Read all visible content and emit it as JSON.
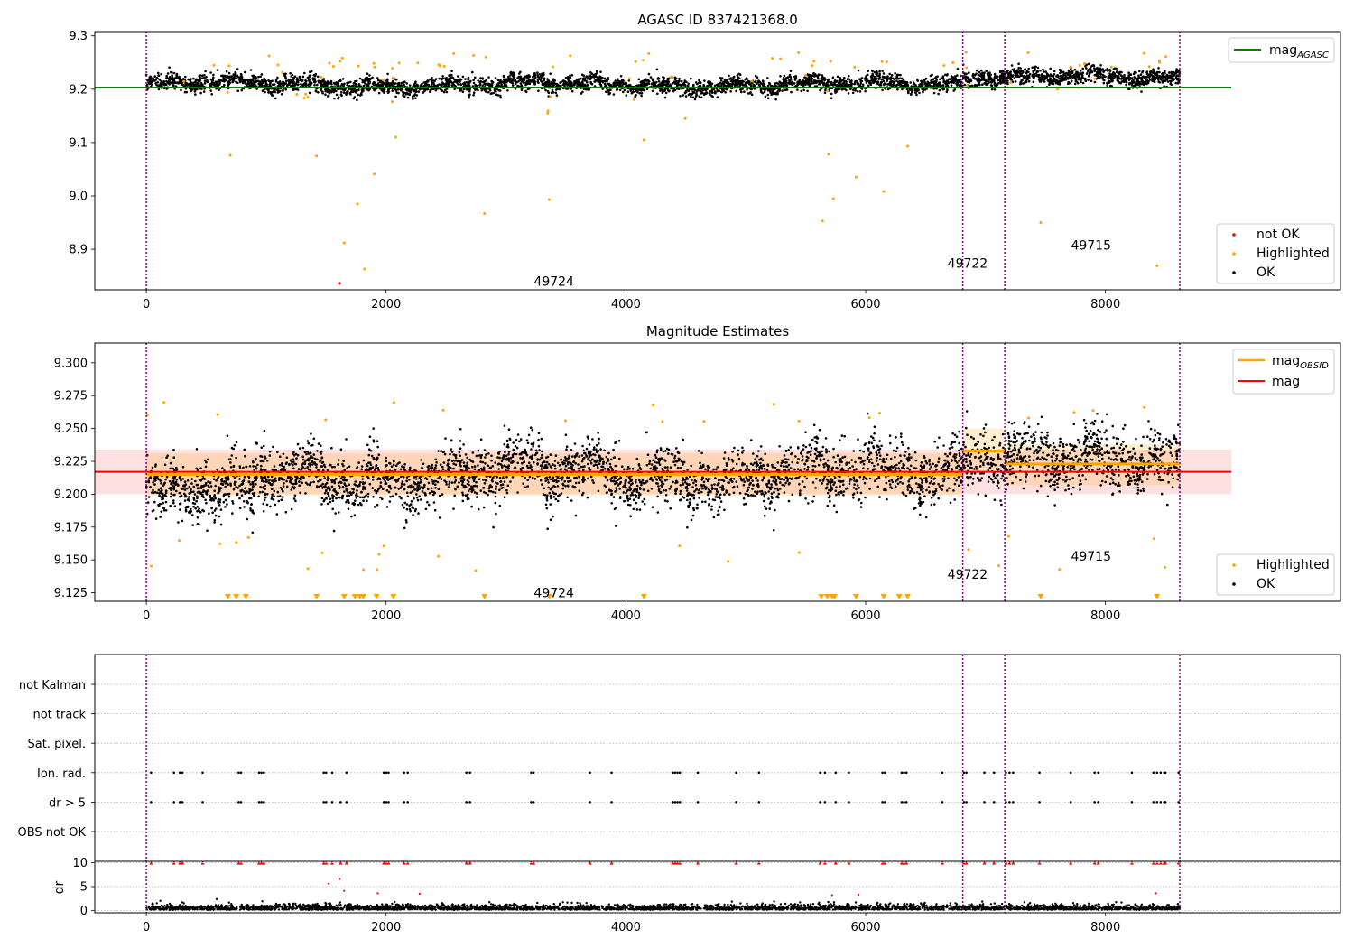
{
  "chart_data": [
    {
      "type": "scatter",
      "title": "AGASC ID 837421368.0",
      "xlabel": "",
      "ylabel": "",
      "xlim": [
        -430,
        9960
      ],
      "ylim": [
        8.824,
        9.308
      ],
      "x_ticks": [
        0,
        2000,
        4000,
        6000,
        8000
      ],
      "y_ticks": [
        8.9,
        9.0,
        9.1,
        9.2,
        9.3
      ],
      "y_tick_decimals": 1,
      "grid": false,
      "obsid_boundaries": [
        0,
        6810,
        7160,
        8620
      ],
      "obsid_labels": [
        {
          "text": "49724",
          "x": 3400,
          "y": 8.84
        },
        {
          "text": "49722",
          "x": 6850,
          "y": 8.874
        },
        {
          "text": "49715",
          "x": 7880,
          "y": 8.908
        }
      ],
      "reference_lines": [
        {
          "name": "mag_AGASC",
          "value": 9.203,
          "x_range": [
            -430,
            9050
          ],
          "color": "#008000"
        }
      ],
      "scatter_series": [
        {
          "name": "OK",
          "color": "#000000",
          "baseline": 9.2085,
          "slow_amp": 0.01,
          "noise": 0.012,
          "count": 4200,
          "seed": 11
        },
        {
          "name": "Highlighted",
          "color": "#ffa500",
          "count": 75,
          "seed": 5,
          "samples": [
            [
              700,
              9.076
            ],
            [
              1650,
              8.912
            ],
            [
              1760,
              8.985
            ],
            [
              1820,
              8.863
            ],
            [
              1900,
              9.041
            ],
            [
              2820,
              8.967
            ],
            [
              3360,
              8.993
            ],
            [
              5640,
              8.953
            ],
            [
              5730,
              8.995
            ],
            [
              5920,
              9.035
            ],
            [
              6150,
              9.008
            ],
            [
              7460,
              8.95
            ],
            [
              8430,
              8.869
            ],
            [
              2080,
              9.11
            ],
            [
              4150,
              9.105
            ],
            [
              5690,
              9.078
            ],
            [
              6350,
              9.093
            ],
            [
              1420,
              9.075
            ]
          ]
        },
        {
          "name": "not OK",
          "color": "#ff0000",
          "points": [
            [
              1610,
              8.836
            ]
          ]
        }
      ],
      "legend": {
        "position": "top-right",
        "entries": [
          {
            "label": "mag",
            "subscript": "AGASC"
          }
        ]
      },
      "legend2": {
        "position": "bottom-right",
        "entries": [
          "not OK",
          "Highlighted",
          "OK"
        ]
      }
    },
    {
      "type": "scatter",
      "title": "Magnitude Estimates",
      "xlabel": "",
      "ylabel": "",
      "xlim": [
        -430,
        9960
      ],
      "ylim": [
        9.1185,
        9.315
      ],
      "x_ticks": [
        0,
        2000,
        4000,
        6000,
        8000
      ],
      "y_ticks": [
        9.125,
        9.15,
        9.175,
        9.2,
        9.225,
        9.25,
        9.275,
        9.3
      ],
      "y_tick_decimals": 3,
      "grid": false,
      "obsid_boundaries": [
        0,
        6810,
        7160,
        8620
      ],
      "obsid_labels": [
        {
          "text": "49724",
          "x": 3400,
          "y": 9.125
        },
        {
          "text": "49722",
          "x": 6850,
          "y": 9.139
        },
        {
          "text": "49715",
          "x": 7880,
          "y": 9.153
        }
      ],
      "mag": {
        "value": 9.217,
        "band": [
          9.2,
          9.234
        ],
        "x_range": [
          -430,
          9050
        ],
        "color": "#ff0000"
      },
      "mag_obsid": [
        {
          "x_range": [
            0,
            6810
          ],
          "value": 9.215,
          "band": [
            9.199,
            9.231
          ]
        },
        {
          "x_range": [
            6810,
            7160
          ],
          "value": 9.233,
          "band": [
            9.218,
            9.25
          ]
        },
        {
          "x_range": [
            7160,
            8620
          ],
          "value": 9.223,
          "band": [
            9.207,
            9.238
          ]
        }
      ],
      "scatter_series": [
        {
          "name": "OK",
          "color": "#000000",
          "count": 4200,
          "seed": 23
        },
        {
          "name": "Highlighted",
          "color": "#ffa500",
          "count": 40,
          "seed": 9
        },
        {
          "name": "Highlighted (below range)",
          "color": "#ffa500",
          "marker": "triangle-down",
          "x": [
            680,
            750,
            830,
            1420,
            1650,
            1740,
            1780,
            1810,
            1920,
            2060,
            2820,
            3360,
            4150,
            5630,
            5680,
            5720,
            5740,
            5920,
            6150,
            6280,
            6350,
            7460,
            8430
          ]
        }
      ],
      "legend": {
        "position": "top-right",
        "entries": [
          {
            "label": "mag",
            "subscript": "OBSID"
          },
          {
            "label": "mag"
          }
        ]
      },
      "legend2": {
        "position": "bottom-right",
        "entries": [
          "Highlighted",
          "OK"
        ]
      }
    },
    {
      "type": "scatter",
      "title": "",
      "xlabel": "",
      "ylabel": "",
      "xlim": [
        -430,
        9960
      ],
      "x_ticks": [
        0,
        2000,
        4000,
        6000,
        8000
      ],
      "grid": true,
      "obsid_boundaries": [
        0,
        6810,
        7160,
        8620
      ],
      "flag_rows": [
        "not Kalman",
        "not track",
        "Sat. pixel.",
        "Ion. rad.",
        "dr > 5",
        "OBS not OK"
      ],
      "flag_events": {
        "Ion. rad.": [
          40,
          230,
          280,
          300,
          470,
          770,
          790,
          940,
          960,
          980,
          1480,
          1500,
          1550,
          1670,
          1980,
          2000,
          2020,
          2150,
          2180,
          2670,
          2700,
          3210,
          3230,
          3700,
          3880,
          4390,
          4410,
          4430,
          4450,
          4600,
          4920,
          5110,
          5620,
          5660,
          5750,
          5860,
          6140,
          6160,
          6300,
          6320,
          6340,
          6640,
          6820,
          6840,
          6990,
          7070,
          7170,
          7200,
          7230,
          7450,
          7710,
          7910,
          7940,
          8220,
          8400,
          8430,
          8460,
          8490,
          8500,
          8610
        ],
        "dr > 5": [
          40,
          230,
          280,
          300,
          470,
          770,
          790,
          940,
          960,
          980,
          1480,
          1500,
          1550,
          1620,
          1670,
          1980,
          2000,
          2020,
          2150,
          2180,
          2670,
          2700,
          3210,
          3230,
          3700,
          3880,
          4390,
          4410,
          4430,
          4450,
          4600,
          4920,
          5110,
          5620,
          5660,
          5750,
          5860,
          6140,
          6160,
          6300,
          6320,
          6340,
          6640,
          6820,
          6840,
          6990,
          7070,
          7170,
          7200,
          7230,
          7450,
          7710,
          7910,
          7940,
          8220,
          8400,
          8430,
          8460,
          8490,
          8500,
          8610
        ]
      }
    },
    {
      "type": "scatter",
      "title": "",
      "xlabel": "",
      "ylabel": "dr",
      "xlim": [
        -430,
        9960
      ],
      "ylim": [
        -0.5,
        10.3
      ],
      "y_ticks": [
        0,
        5,
        10
      ],
      "x_ticks": [
        0,
        2000,
        4000,
        6000,
        8000
      ],
      "grid": true,
      "obsid_boundaries": [
        0,
        6810,
        7160,
        8620
      ],
      "scatter_series": [
        {
          "name": "dr",
          "color": "#000000",
          "count": 3500,
          "seed": 31
        },
        {
          "name": "dr > 5 clipped",
          "color": "#ff0000",
          "marker": "triangle-up",
          "value": 10
        },
        {
          "name": "dr red",
          "color": "#ff0000",
          "points": [
            [
              1520,
              5.6
            ],
            [
              1610,
              6.6
            ],
            [
              1650,
              4.1
            ],
            [
              1930,
              3.6
            ],
            [
              2280,
              3.5
            ],
            [
              5720,
              3.2
            ],
            [
              5940,
              3.3
            ],
            [
              8420,
              3.6
            ]
          ]
        }
      ]
    }
  ]
}
